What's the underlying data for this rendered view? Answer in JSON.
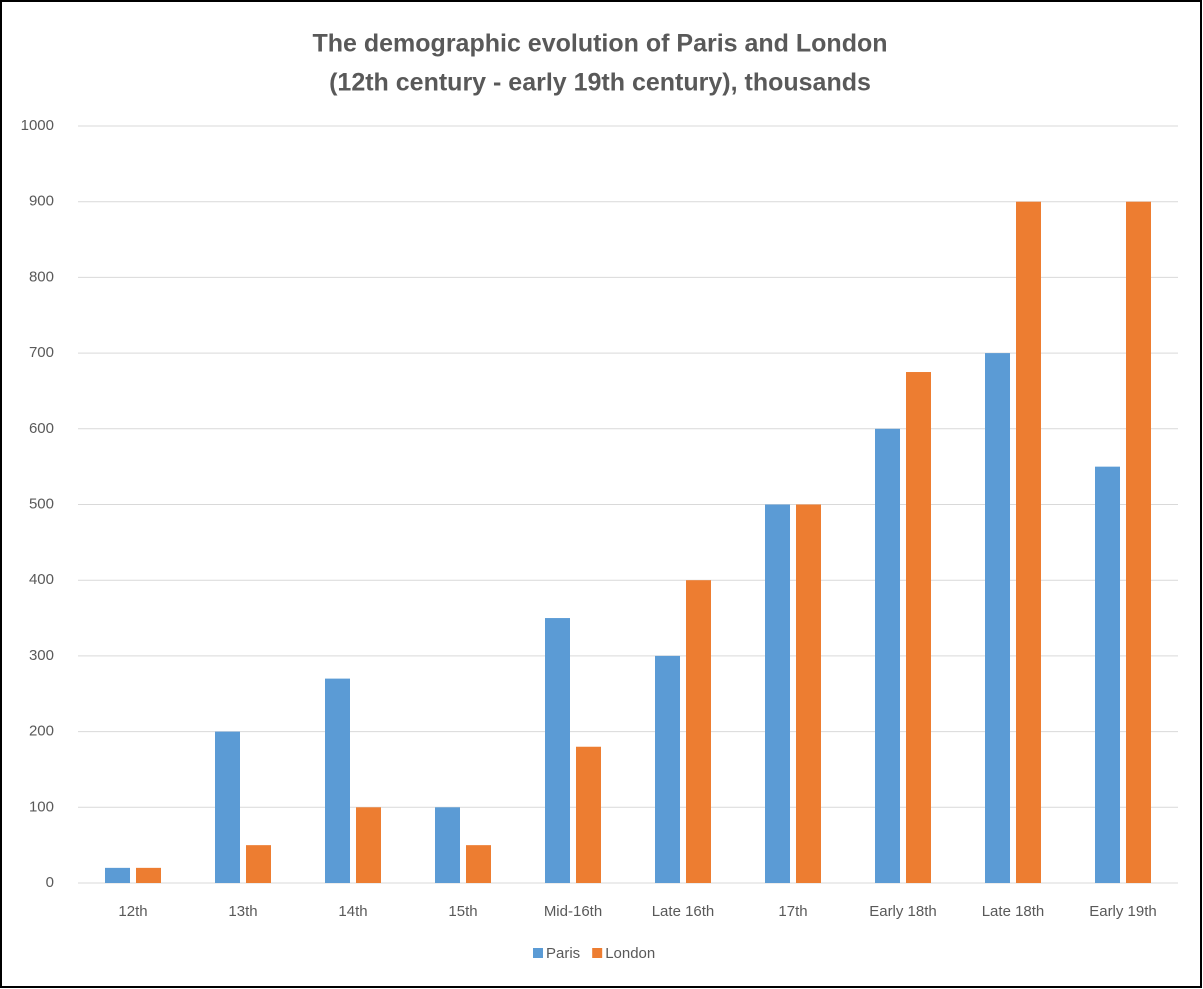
{
  "chart_data": {
    "type": "bar",
    "title": [
      "The demographic evolution of Paris and London",
      "(12th century - early 19th century), thousands"
    ],
    "categories": [
      "12th",
      "13th",
      "14th",
      "15th",
      "Mid-16th",
      "Late 16th",
      "17th",
      "Early 18th",
      "Late 18th",
      "Early 19th"
    ],
    "series": [
      {
        "name": "Paris",
        "color": "#5b9bd5",
        "values": [
          20,
          200,
          270,
          100,
          350,
          300,
          500,
          600,
          700,
          550
        ]
      },
      {
        "name": "London",
        "color": "#ed7d31",
        "values": [
          20,
          50,
          100,
          50,
          180,
          400,
          500,
          675,
          900,
          900
        ]
      }
    ],
    "ylim": [
      0,
      1000
    ],
    "yticks": [
      0,
      100,
      200,
      300,
      400,
      500,
      600,
      700,
      800,
      900,
      1000
    ],
    "grid": true,
    "legend": "bottom"
  }
}
